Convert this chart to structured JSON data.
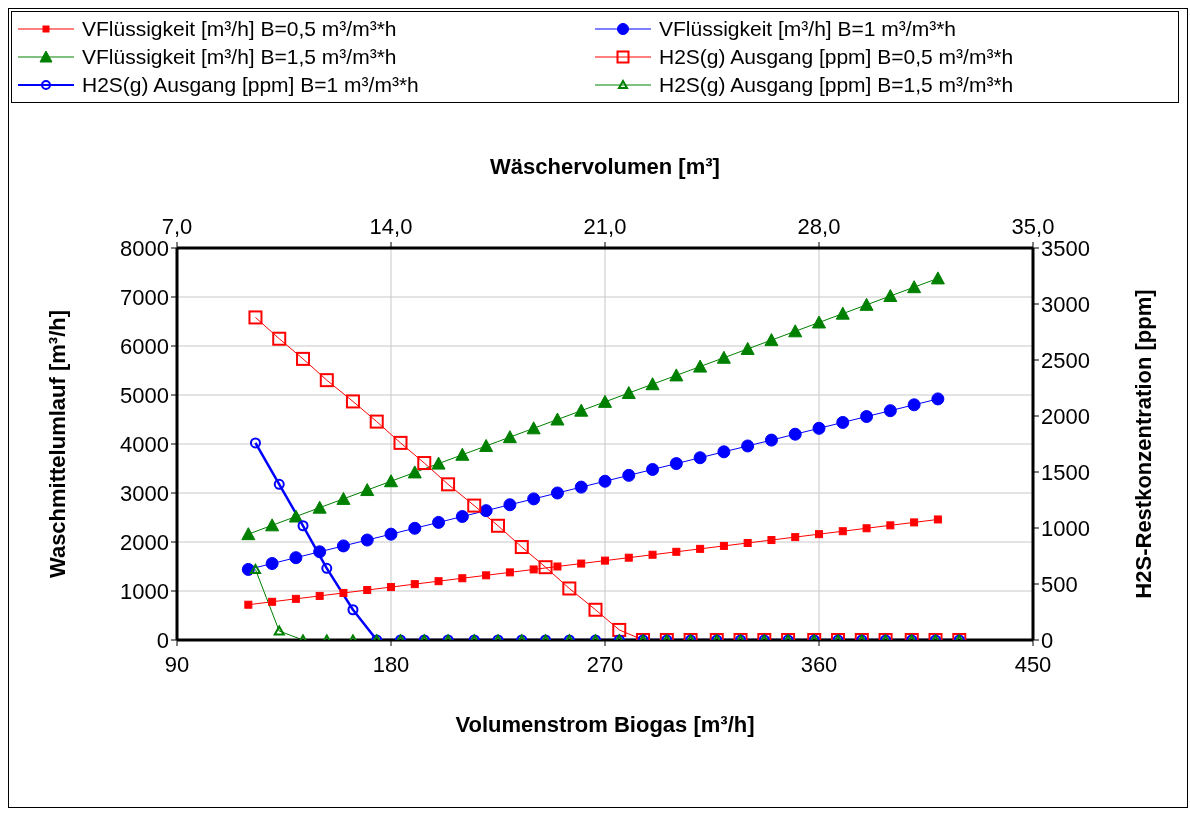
{
  "chart_data": {
    "type": "line",
    "xlabel": "Volumenstrom Biogas [m³/h]",
    "x2label": "Wäschervolumen [m³]",
    "ylabel": "Waschmittelumlauf [m³/h]",
    "y2label": "H2S-Restkonzentration [ppm]",
    "xlim": [
      90,
      450
    ],
    "xticks": [
      90,
      180,
      270,
      360,
      450
    ],
    "x2lim": [
      7,
      35
    ],
    "x2ticks": [
      {
        "value": 7,
        "label": "7,0"
      },
      {
        "value": 14,
        "label": "14,0"
      },
      {
        "value": 21,
        "label": "21,0"
      },
      {
        "value": 28,
        "label": "28,0"
      },
      {
        "value": 35,
        "label": "35,0"
      }
    ],
    "ylim": [
      0,
      8000
    ],
    "yticks": [
      0,
      1000,
      2000,
      3000,
      4000,
      5000,
      6000,
      7000,
      8000
    ],
    "y2lim": [
      0,
      3500
    ],
    "y2ticks": [
      0,
      500,
      1000,
      1500,
      2000,
      2500,
      3000,
      3500
    ],
    "grid": true,
    "legend": "top",
    "line_style": "solid",
    "series": [
      {
        "name": "VFlüssigkeit [m³/h] B=0,5 m³/m³*h",
        "color": "#ff0000",
        "marker": "square",
        "x": [
          120,
          130,
          140,
          150,
          160,
          170,
          180,
          190,
          200,
          210,
          220,
          230,
          240,
          250,
          260,
          270,
          280,
          290,
          300,
          310,
          320,
          330,
          340,
          350,
          360,
          370,
          380,
          390,
          400,
          410
        ],
        "values": [
          720,
          780,
          840,
          900,
          960,
          1020,
          1080,
          1140,
          1200,
          1260,
          1320,
          1380,
          1440,
          1500,
          1560,
          1620,
          1680,
          1740,
          1800,
          1860,
          1920,
          1980,
          2040,
          2100,
          2160,
          2220,
          2280,
          2340,
          2400,
          2460
        ]
      },
      {
        "name": "VFlüssigkeit [m³/h] B=1 m³/m³*h",
        "color": "#0000ff",
        "marker": "circle",
        "x": [
          120,
          130,
          140,
          150,
          160,
          170,
          180,
          190,
          200,
          210,
          220,
          230,
          240,
          250,
          260,
          270,
          280,
          290,
          300,
          310,
          320,
          330,
          340,
          350,
          360,
          370,
          380,
          390,
          400,
          410
        ],
        "values": [
          1440,
          1560,
          1680,
          1800,
          1920,
          2040,
          2160,
          2280,
          2400,
          2520,
          2640,
          2760,
          2880,
          3000,
          3120,
          3240,
          3360,
          3480,
          3600,
          3720,
          3840,
          3960,
          4080,
          4200,
          4320,
          4440,
          4560,
          4680,
          4800,
          4920
        ]
      },
      {
        "name": "VFlüssigkeit [m³/h] B=1,5 m³/m³*h",
        "color": "#008000",
        "marker": "triangle",
        "x": [
          120,
          130,
          140,
          150,
          160,
          170,
          180,
          190,
          200,
          210,
          220,
          230,
          240,
          250,
          260,
          270,
          280,
          290,
          300,
          310,
          320,
          330,
          340,
          350,
          360,
          370,
          380,
          390,
          400,
          410
        ],
        "values": [
          2160,
          2340,
          2520,
          2700,
          2880,
          3060,
          3240,
          3420,
          3600,
          3780,
          3960,
          4140,
          4320,
          4500,
          4680,
          4860,
          5040,
          5220,
          5400,
          5580,
          5760,
          5940,
          6120,
          6300,
          6480,
          6660,
          6840,
          7020,
          7200,
          7380
        ]
      },
      {
        "name": "H2S(g) Ausgang [ppm] B=0,5 m³/m³*h",
        "color": "#ff0000",
        "marker": "square",
        "axis": "y2",
        "x": [
          123,
          133,
          143,
          153,
          164,
          174,
          184,
          194,
          204,
          215,
          225,
          235,
          245,
          255,
          266,
          276,
          286,
          296,
          306,
          317,
          327,
          337,
          347,
          358,
          368,
          378,
          388,
          399,
          409,
          419
        ],
        "values": [
          2880,
          2690,
          2510,
          2320,
          2130,
          1950,
          1760,
          1580,
          1390,
          1200,
          1020,
          830,
          650,
          460,
          270,
          90,
          0,
          0,
          0,
          0,
          0,
          0,
          0,
          0,
          0,
          0,
          0,
          0,
          0,
          0
        ]
      },
      {
        "name": "H2S(g) Ausgang [ppm] B=1 m³/m³*h",
        "color": "#0000ff",
        "marker": "circle",
        "axis": "y2",
        "x": [
          123,
          133,
          143,
          153,
          164,
          174,
          184,
          194,
          204,
          215,
          225,
          235,
          245,
          255,
          266,
          276,
          286,
          296,
          306,
          317,
          327,
          337,
          347,
          358,
          368,
          378,
          388,
          399,
          409,
          419
        ],
        "values": [
          1760,
          1390,
          1020,
          640,
          270,
          0,
          0,
          0,
          0,
          0,
          0,
          0,
          0,
          0,
          0,
          0,
          0,
          0,
          0,
          0,
          0,
          0,
          0,
          0,
          0,
          0,
          0,
          0,
          0,
          0
        ]
      },
      {
        "name": "H2S(g) Ausgang [ppm] B=1,5 m³/m³*h",
        "color": "#008000",
        "marker": "triangle",
        "axis": "y2",
        "x": [
          123,
          133,
          143,
          153,
          164,
          174,
          184,
          194,
          204,
          215,
          225,
          235,
          245,
          255,
          266,
          276,
          286,
          296,
          306,
          317,
          327,
          337,
          347,
          358,
          368,
          378,
          388,
          399,
          409,
          419
        ],
        "values": [
          630,
          80,
          0,
          0,
          0,
          0,
          0,
          0,
          0,
          0,
          0,
          0,
          0,
          0,
          0,
          0,
          0,
          0,
          0,
          0,
          0,
          0,
          0,
          0,
          0,
          0,
          0,
          0,
          0,
          0
        ]
      }
    ]
  }
}
